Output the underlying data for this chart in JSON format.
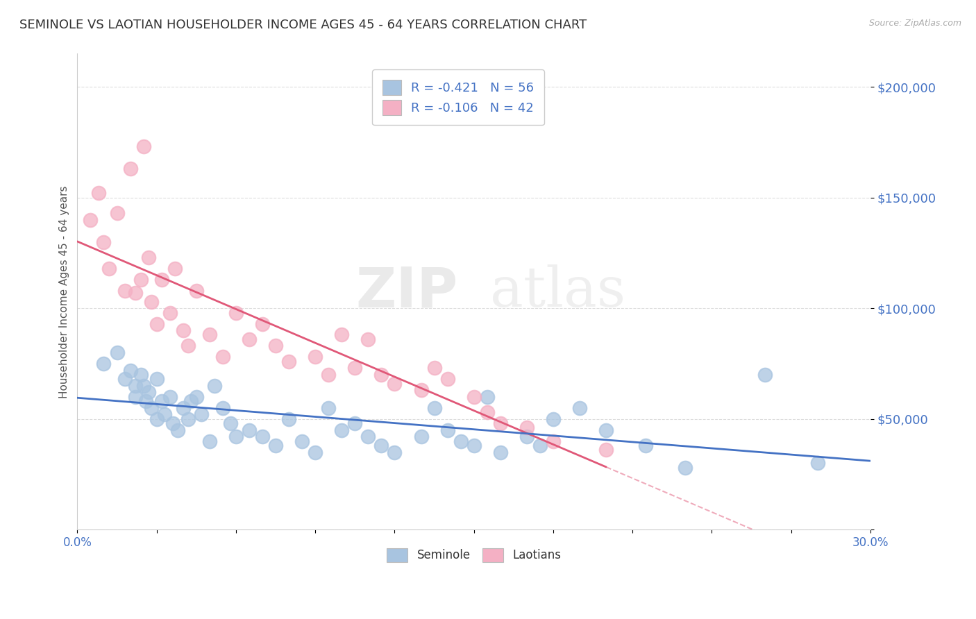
{
  "title": "SEMINOLE VS LAOTIAN HOUSEHOLDER INCOME AGES 45 - 64 YEARS CORRELATION CHART",
  "source_text": "Source: ZipAtlas.com",
  "ylabel": "Householder Income Ages 45 - 64 years",
  "xlim": [
    0.0,
    0.3
  ],
  "ylim": [
    0,
    215000
  ],
  "yticks": [
    0,
    50000,
    100000,
    150000,
    200000
  ],
  "ytick_labels": [
    "",
    "$50,000",
    "$100,000",
    "$150,000",
    "$200,000"
  ],
  "xticks": [
    0.0,
    0.03,
    0.06,
    0.09,
    0.12,
    0.15,
    0.18,
    0.21,
    0.24,
    0.27,
    0.3
  ],
  "xtick_labels": [
    "0.0%",
    "",
    "",
    "",
    "",
    "",
    "",
    "",
    "",
    "",
    "30.0%"
  ],
  "seminole_R": -0.421,
  "seminole_N": 56,
  "laotian_R": -0.106,
  "laotian_N": 42,
  "seminole_color": "#a8c4e0",
  "laotian_color": "#f4b0c4",
  "seminole_line_color": "#4472c4",
  "laotian_line_color": "#e05878",
  "background_color": "#ffffff",
  "grid_color": "#dddddd",
  "seminole_x": [
    0.01,
    0.015,
    0.018,
    0.02,
    0.022,
    0.022,
    0.024,
    0.025,
    0.026,
    0.027,
    0.028,
    0.03,
    0.03,
    0.032,
    0.033,
    0.035,
    0.036,
    0.038,
    0.04,
    0.042,
    0.043,
    0.045,
    0.047,
    0.05,
    0.052,
    0.055,
    0.058,
    0.06,
    0.065,
    0.07,
    0.075,
    0.08,
    0.085,
    0.09,
    0.095,
    0.1,
    0.105,
    0.11,
    0.115,
    0.12,
    0.13,
    0.135,
    0.14,
    0.145,
    0.15,
    0.155,
    0.16,
    0.17,
    0.175,
    0.18,
    0.19,
    0.2,
    0.215,
    0.23,
    0.26,
    0.28
  ],
  "seminole_y": [
    75000,
    80000,
    68000,
    72000,
    65000,
    60000,
    70000,
    65000,
    58000,
    62000,
    55000,
    68000,
    50000,
    58000,
    52000,
    60000,
    48000,
    45000,
    55000,
    50000,
    58000,
    60000,
    52000,
    40000,
    65000,
    55000,
    48000,
    42000,
    45000,
    42000,
    38000,
    50000,
    40000,
    35000,
    55000,
    45000,
    48000,
    42000,
    38000,
    35000,
    42000,
    55000,
    45000,
    40000,
    38000,
    60000,
    35000,
    42000,
    38000,
    50000,
    55000,
    45000,
    38000,
    28000,
    70000,
    30000
  ],
  "laotian_x": [
    0.005,
    0.008,
    0.01,
    0.012,
    0.015,
    0.018,
    0.02,
    0.022,
    0.024,
    0.025,
    0.027,
    0.028,
    0.03,
    0.032,
    0.035,
    0.037,
    0.04,
    0.042,
    0.045,
    0.05,
    0.055,
    0.06,
    0.065,
    0.07,
    0.075,
    0.08,
    0.09,
    0.095,
    0.1,
    0.105,
    0.11,
    0.115,
    0.12,
    0.13,
    0.135,
    0.14,
    0.15,
    0.155,
    0.16,
    0.17,
    0.18,
    0.2
  ],
  "laotian_y": [
    140000,
    152000,
    130000,
    118000,
    143000,
    108000,
    163000,
    107000,
    113000,
    173000,
    123000,
    103000,
    93000,
    113000,
    98000,
    118000,
    90000,
    83000,
    108000,
    88000,
    78000,
    98000,
    86000,
    93000,
    83000,
    76000,
    78000,
    70000,
    88000,
    73000,
    86000,
    70000,
    66000,
    63000,
    73000,
    68000,
    60000,
    53000,
    48000,
    46000,
    40000,
    36000
  ],
  "watermark_zip": "ZIP",
  "watermark_atlas": "atlas",
  "legend_color": "#4472c4"
}
